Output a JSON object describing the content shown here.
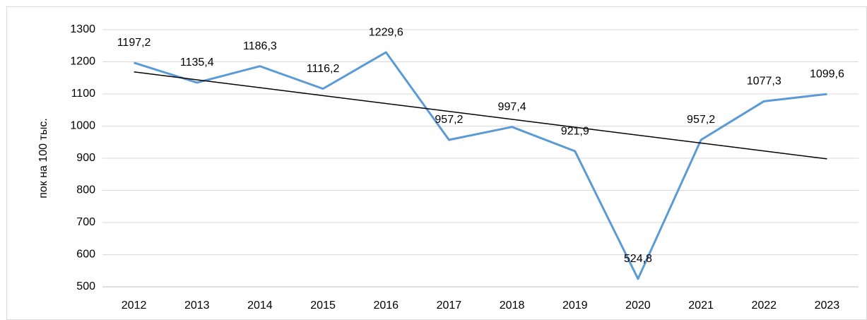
{
  "chart_data": {
    "type": "line",
    "y_label": "пок на 100 тыс.",
    "categories": [
      "2012",
      "2013",
      "2014",
      "2015",
      "2016",
      "2017",
      "2018",
      "2019",
      "2020",
      "2021",
      "2022",
      "2023"
    ],
    "values": [
      1197.2,
      1135.4,
      1186.3,
      1116.2,
      1229.6,
      957.2,
      997.4,
      921.9,
      524.8,
      957.2,
      1077.3,
      1099.6
    ],
    "value_labels": [
      "1197,2",
      "1135,4",
      "1186,3",
      "1116,2",
      "1229,6",
      "957,2",
      "997,4",
      "921,9",
      "524,8",
      "957,2",
      "1077,3",
      "1099,6"
    ],
    "color": "#5b9bd5",
    "trendline": "linear",
    "trendline_color": "#000000",
    "ylim": [
      500,
      1300
    ],
    "yticks": [
      500,
      600,
      700,
      800,
      900,
      1000,
      1100,
      1200,
      1300
    ],
    "grid": true
  }
}
